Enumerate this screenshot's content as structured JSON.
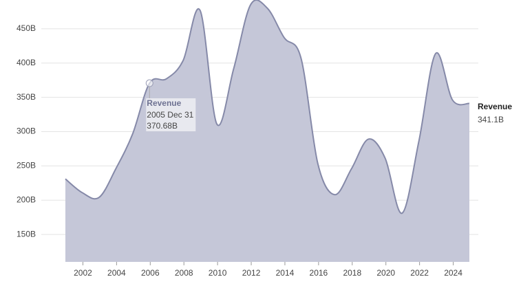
{
  "chart_data": {
    "type": "area",
    "x": [
      2001,
      2002,
      2003,
      2004,
      2005,
      2006,
      2007,
      2008,
      2009,
      2010,
      2011,
      2012,
      2013,
      2014,
      2015,
      2016,
      2017,
      2018,
      2019,
      2020,
      2021,
      2022,
      2023,
      2024,
      2025
    ],
    "series": [
      {
        "name": "Revenue",
        "color": "#8589a8",
        "fill": "#c5c7d8",
        "values": [
          231,
          211,
          204,
          246,
          297,
          370.68,
          377,
          404,
          477,
          311,
          392,
          485,
          480,
          437,
          407,
          253,
          208,
          246,
          289,
          261,
          181,
          286,
          414,
          346,
          341.1
        ],
        "value_labels": [
          null,
          null,
          null,
          null,
          null,
          "370.68B",
          null,
          null,
          null,
          null,
          null,
          null,
          null,
          null,
          null,
          null,
          null,
          null,
          null,
          null,
          null,
          null,
          null,
          null,
          "341.1B"
        ]
      }
    ],
    "tooltip": {
      "date": "2005 Dec 31"
    },
    "xlim": [
      2000.45,
      2026.0
    ],
    "xticks": [
      2002,
      2004,
      2006,
      2008,
      2010,
      2012,
      2014,
      2016,
      2018,
      2020,
      2022,
      2024
    ],
    "ylim": [
      110,
      490
    ],
    "yticks": [
      {
        "value": 150,
        "label": "150B"
      },
      {
        "value": 200,
        "label": "200B"
      },
      {
        "value": 250,
        "label": "250B"
      },
      {
        "value": 300,
        "label": "300B"
      },
      {
        "value": 350,
        "label": "350B"
      },
      {
        "value": 400,
        "label": "400B"
      },
      {
        "value": 450,
        "label": "450B"
      }
    ],
    "grid": true
  }
}
